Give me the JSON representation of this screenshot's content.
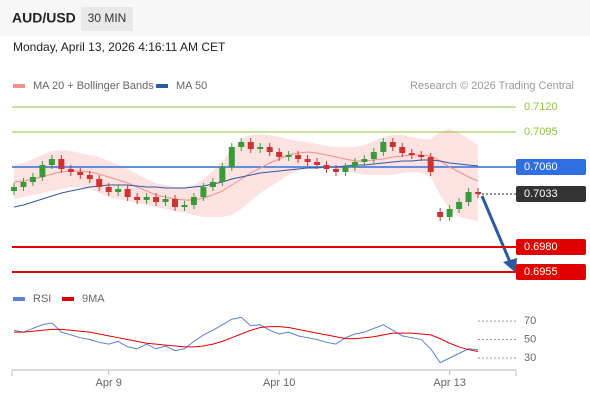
{
  "chart_data": {
    "type": "candlestick",
    "symbol": "AUD/USD",
    "timeframe": "30 MIN",
    "datetime": "Monday, April 13, 2026 4:16:11 AM CET",
    "source": "Research © 2026 Trading Central",
    "up_color": "#3a9a3a",
    "down_color": "#cc3333",
    "categories": [
      null,
      null,
      null,
      null,
      null,
      null,
      null,
      null,
      null,
      null,
      "Apr 9",
      null,
      null,
      null,
      null,
      null,
      null,
      null,
      null,
      null,
      null,
      null,
      null,
      null,
      null,
      null,
      null,
      null,
      "Apr 10",
      null,
      null,
      null,
      null,
      null,
      null,
      null,
      null,
      null,
      null,
      null,
      null,
      null,
      null,
      null,
      null,
      null,
      "Apr 13",
      null,
      null,
      null
    ],
    "open": [
      0.7036,
      0.704,
      0.7045,
      0.705,
      0.7062,
      0.7068,
      0.7058,
      0.7055,
      0.7052,
      0.7048,
      0.704,
      0.7035,
      0.7038,
      0.703,
      0.7027,
      0.703,
      0.7025,
      0.7028,
      0.702,
      0.7022,
      0.703,
      0.704,
      0.7045,
      0.706,
      0.708,
      0.7085,
      0.7078,
      0.708,
      0.7075,
      0.707,
      0.7072,
      0.7068,
      0.7065,
      0.7062,
      0.7058,
      0.7055,
      0.706,
      0.7065,
      0.7068,
      0.7075,
      0.7085,
      0.708,
      0.7074,
      0.7072,
      0.707,
      0.7015,
      0.701,
      0.7018,
      0.7025,
      0.7035
    ],
    "high": [
      0.7044,
      0.7049,
      0.7054,
      0.7066,
      0.7072,
      0.7072,
      0.7062,
      0.7059,
      0.7056,
      0.7052,
      0.7044,
      0.7042,
      0.7042,
      0.7034,
      0.7034,
      0.7034,
      0.7032,
      0.7032,
      0.7026,
      0.7034,
      0.7044,
      0.7049,
      0.7064,
      0.7084,
      0.7089,
      0.7089,
      0.7084,
      0.7084,
      0.7079,
      0.7076,
      0.7076,
      0.7072,
      0.7069,
      0.7066,
      0.7062,
      0.7064,
      0.7069,
      0.7072,
      0.7079,
      0.7089,
      0.7089,
      0.7084,
      0.7078,
      0.7076,
      0.7074,
      0.7019,
      0.7022,
      0.7029,
      0.7039,
      0.7039
    ],
    "low": [
      0.7032,
      0.7036,
      0.7041,
      0.7046,
      0.7058,
      0.7054,
      0.7051,
      0.7048,
      0.7044,
      0.7036,
      0.7031,
      0.7031,
      0.7026,
      0.7023,
      0.7023,
      0.7021,
      0.7021,
      0.7016,
      0.7016,
      0.7018,
      0.7026,
      0.7036,
      0.7041,
      0.7056,
      0.7076,
      0.7074,
      0.7074,
      0.7071,
      0.7066,
      0.7066,
      0.7064,
      0.7061,
      0.7058,
      0.7054,
      0.7051,
      0.7051,
      0.7056,
      0.7061,
      0.7064,
      0.7071,
      0.7076,
      0.707,
      0.7068,
      0.7066,
      0.7051,
      0.7006,
      0.7006,
      0.7014,
      0.7021,
      0.7029
    ],
    "close": [
      0.704,
      0.7045,
      0.705,
      0.7062,
      0.7068,
      0.7058,
      0.7055,
      0.7052,
      0.7048,
      0.704,
      0.7035,
      0.7038,
      0.703,
      0.7027,
      0.703,
      0.7025,
      0.7028,
      0.702,
      0.7022,
      0.703,
      0.704,
      0.7045,
      0.706,
      0.708,
      0.7085,
      0.7078,
      0.708,
      0.7075,
      0.707,
      0.7072,
      0.7068,
      0.7065,
      0.7062,
      0.7058,
      0.7055,
      0.706,
      0.7065,
      0.7068,
      0.7075,
      0.7085,
      0.708,
      0.7074,
      0.7072,
      0.707,
      0.7055,
      0.701,
      0.7018,
      0.7025,
      0.7035,
      0.7033
    ],
    "ylim": [
      0.6942,
      0.7132
    ],
    "indicators": [
      {
        "name": "MA 20 + Bollinger Bands",
        "color": "#f4908a",
        "band_color": "#fde2e2",
        "values": [
          0.7045,
          0.7046,
          0.7048,
          0.705,
          0.7053,
          0.7055,
          0.7056,
          0.7056,
          0.7055,
          0.7053,
          0.705,
          0.7047,
          0.7044,
          0.704,
          0.7036,
          0.7032,
          0.703,
          0.7028,
          0.7027,
          0.7027,
          0.7029,
          0.7032,
          0.7036,
          0.7042,
          0.7048,
          0.7054,
          0.7059,
          0.7064,
          0.7068,
          0.7072,
          0.7074,
          0.7075,
          0.7074,
          0.7072,
          0.707,
          0.7068,
          0.7066,
          0.7066,
          0.7067,
          0.7068,
          0.707,
          0.7071,
          0.7072,
          0.7072,
          0.7071,
          0.7066,
          0.706,
          0.7055,
          0.705,
          0.7046
        ],
        "upper": [
          0.7062,
          0.7064,
          0.7068,
          0.7072,
          0.7076,
          0.7077,
          0.7076,
          0.7074,
          0.7072,
          0.707,
          0.7066,
          0.7062,
          0.7058,
          0.7053,
          0.7048,
          0.7044,
          0.7042,
          0.704,
          0.704,
          0.7042,
          0.7048,
          0.7056,
          0.7066,
          0.7078,
          0.7088,
          0.7092,
          0.7093,
          0.7092,
          0.709,
          0.7088,
          0.7086,
          0.7085,
          0.7083,
          0.7081,
          0.708,
          0.708,
          0.708,
          0.7082,
          0.7086,
          0.709,
          0.7092,
          0.7092,
          0.709,
          0.7088,
          0.7088,
          0.7095,
          0.7098,
          0.7094,
          0.7088,
          0.7082
        ],
        "lower": [
          0.7028,
          0.703,
          0.7032,
          0.7034,
          0.7036,
          0.7038,
          0.704,
          0.704,
          0.7038,
          0.7034,
          0.703,
          0.7028,
          0.7026,
          0.7024,
          0.7022,
          0.702,
          0.7018,
          0.7016,
          0.7014,
          0.7012,
          0.701,
          0.701,
          0.701,
          0.7012,
          0.7018,
          0.7026,
          0.7034,
          0.704,
          0.7046,
          0.7052,
          0.7056,
          0.706,
          0.7062,
          0.706,
          0.7058,
          0.7056,
          0.7054,
          0.7052,
          0.7052,
          0.7052,
          0.7052,
          0.7054,
          0.7055,
          0.7054,
          0.705,
          0.7032,
          0.7018,
          0.701,
          0.7008,
          0.7006
        ]
      },
      {
        "name": "MA 50",
        "color": "#2c5aa0",
        "values": [
          0.702,
          0.7022,
          0.7025,
          0.7028,
          0.7031,
          0.7034,
          0.7036,
          0.7038,
          0.704,
          0.7041,
          0.7042,
          0.7042,
          0.7042,
          0.7041,
          0.704,
          0.704,
          0.7039,
          0.7039,
          0.7039,
          0.704,
          0.7041,
          0.7043,
          0.7045,
          0.7048,
          0.705,
          0.7052,
          0.7054,
          0.7055,
          0.7056,
          0.7057,
          0.7058,
          0.7059,
          0.7059,
          0.706,
          0.706,
          0.7061,
          0.7062,
          0.7062,
          0.7063,
          0.7064,
          0.7065,
          0.7066,
          0.7066,
          0.7067,
          0.7067,
          0.7066,
          0.7064,
          0.7063,
          0.7062,
          0.7061
        ]
      }
    ],
    "levels": [
      {
        "value": 0.712,
        "label": "0.7120",
        "color": "#8cc63f",
        "line": "thin"
      },
      {
        "value": 0.7095,
        "label": "0.7095",
        "color": "#8cc63f",
        "line": "thin"
      },
      {
        "value": 0.706,
        "label": "0.7060",
        "color": "#2f6fdf",
        "line": "box"
      },
      {
        "value": 0.7033,
        "label": "0.7033",
        "color": "#333333",
        "line": "dotted"
      },
      {
        "value": 0.698,
        "label": "0.6980",
        "color": "#e00000",
        "line": "box"
      },
      {
        "value": 0.6955,
        "label": "0.6955",
        "color": "#e00000",
        "line": "box"
      }
    ],
    "rsi": {
      "ylim": [
        17,
        82
      ],
      "yticks": [
        70,
        50,
        30
      ],
      "series": [
        {
          "name": "RSI",
          "color": "#5b7fd6",
          "values": [
            60,
            58,
            62,
            66,
            68,
            58,
            55,
            52,
            50,
            47,
            45,
            48,
            42,
            40,
            45,
            40,
            43,
            38,
            40,
            48,
            55,
            60,
            66,
            72,
            74,
            65,
            66,
            60,
            56,
            58,
            54,
            52,
            50,
            47,
            45,
            52,
            56,
            58,
            62,
            66,
            60,
            54,
            52,
            50,
            40,
            25,
            30,
            35,
            40,
            39
          ]
        },
        {
          "name": "9MA",
          "color": "#e00000",
          "values": [
            58,
            58,
            59,
            60,
            61,
            61,
            60,
            59,
            58,
            56,
            54,
            52,
            50,
            48,
            46,
            45,
            44,
            43,
            42,
            42,
            43,
            45,
            48,
            52,
            56,
            60,
            63,
            64,
            64,
            63,
            61,
            59,
            57,
            55,
            53,
            51,
            51,
            52,
            53,
            55,
            57,
            57,
            57,
            56,
            55,
            51,
            46,
            42,
            39,
            37
          ]
        }
      ]
    }
  }
}
